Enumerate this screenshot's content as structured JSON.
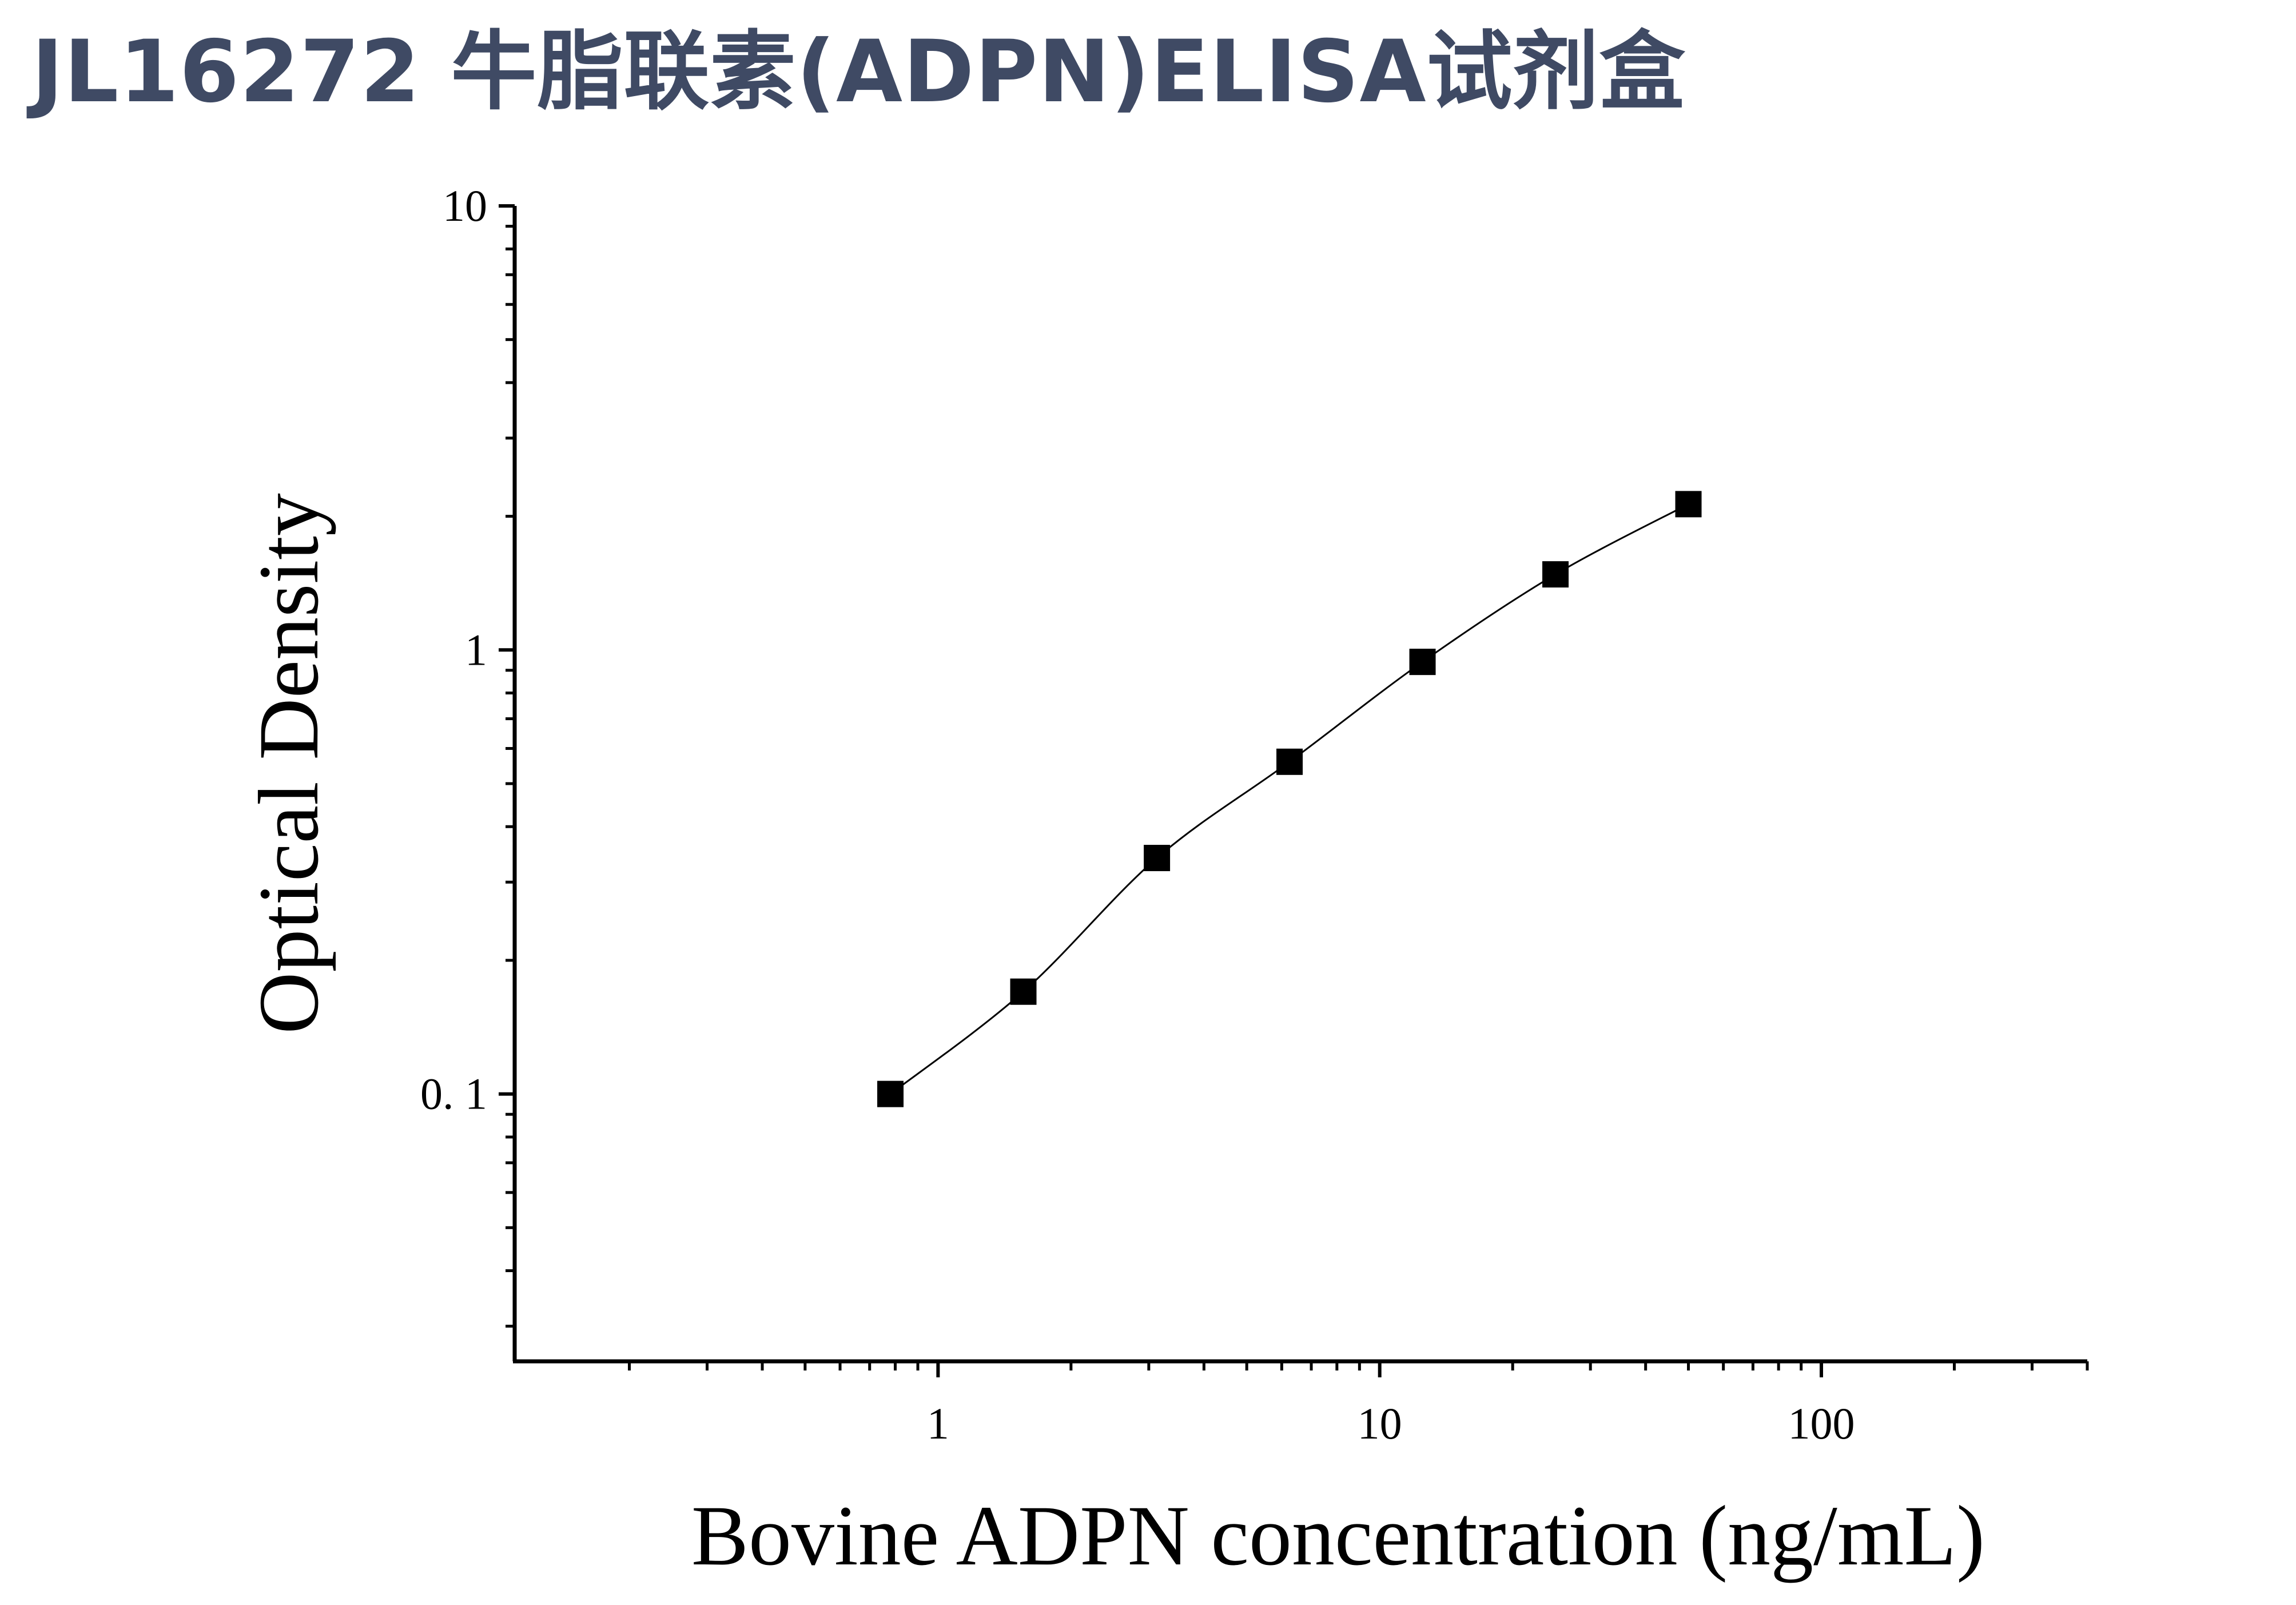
{
  "title": "JL16272 牛脂联素(ADPN)ELISA试剂盒",
  "chart_data": {
    "type": "scatter",
    "title": "JL16272 牛脂联素(ADPN)ELISA试剂盒",
    "xlabel": "Bovine ADPN concentration (ng/mL)",
    "ylabel": "Optical Density",
    "xscale": "log",
    "yscale": "log",
    "xlim": [
      0.11,
      400
    ],
    "ylim": [
      0.025,
      10
    ],
    "xticks": [
      1,
      10,
      100
    ],
    "xtick_labels": [
      "1",
      "10",
      "100"
    ],
    "yticks": [
      0.1,
      1,
      10
    ],
    "ytick_labels": [
      "0. 1",
      "1",
      "10"
    ],
    "grid": false,
    "legend": "none",
    "series": [
      {
        "x": [
          0.78,
          1.56,
          3.13,
          6.25,
          12.5,
          25,
          50
        ],
        "y": [
          0.1,
          0.17,
          0.34,
          0.56,
          0.94,
          1.48,
          2.13
        ],
        "marker": "square",
        "color": "#000000",
        "fit_line": true
      }
    ]
  }
}
